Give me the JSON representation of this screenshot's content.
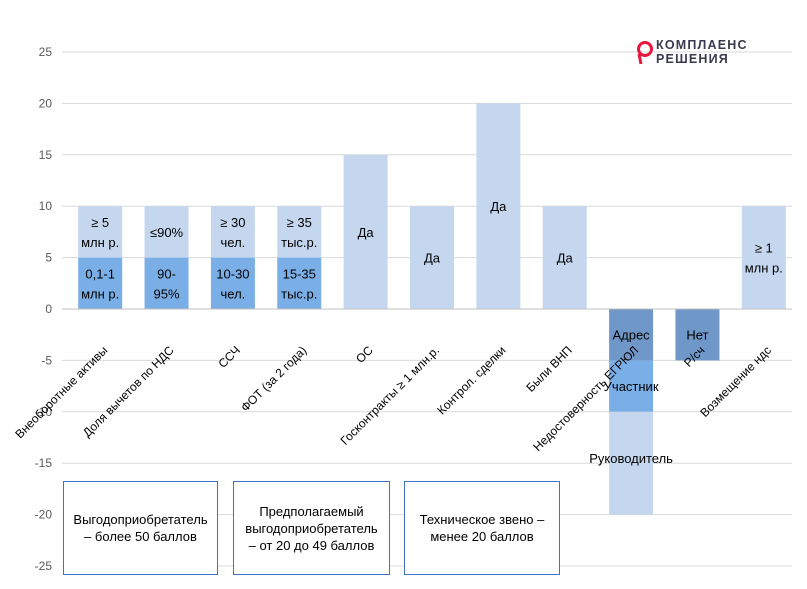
{
  "logo": {
    "line1": "КОМПЛАЕНС",
    "line2": "РЕШЕНИЯ",
    "accent_color": "#e8173c"
  },
  "legend": {
    "box1": "Выгодоприобретатель – более 50 баллов",
    "box2": "Предполагаемый выгодоприобретатель – от 20 до 49 баллов",
    "box3": "Техническое звено – менее 20 баллов"
  },
  "chart_data": {
    "type": "bar",
    "stacked": true,
    "ylim": [
      -25,
      25
    ],
    "yticks": [
      25,
      20,
      15,
      10,
      5,
      0,
      -5,
      -10,
      -15,
      -20,
      -25
    ],
    "grid": true,
    "categories": [
      "Внеоборотные активы",
      "Доля вычетов по НДС",
      "ССЧ",
      "ФОТ (за 2 года)",
      "ОС",
      "Госконтракты ≥ 1 млн.р.",
      "Контрол. сделки",
      "Были ВНП",
      "Недостоверность ЕГРЮЛ",
      "Р/сч",
      "Возмещение ндс"
    ],
    "colors": {
      "light": "#c5d7ee",
      "medium": "#7aaee6",
      "dark": "#6f98c8"
    },
    "series": [
      {
        "name": "segment-1",
        "values": [
          5,
          5,
          5,
          5,
          15,
          10,
          20,
          10,
          -5,
          -5,
          10
        ],
        "colors": [
          "medium",
          "medium",
          "medium",
          "medium",
          "light",
          "light",
          "light",
          "light",
          "dark",
          "dark",
          "light"
        ],
        "labels": [
          [
            "0,1-1",
            "млн р."
          ],
          [
            "90-",
            "95%"
          ],
          [
            "10-30",
            "чел."
          ],
          [
            "15-35",
            "тыс.р."
          ],
          [
            "Да"
          ],
          [
            "Да"
          ],
          [
            "Да"
          ],
          [
            "Да"
          ],
          [
            "Адрес"
          ],
          [
            "Нет"
          ],
          [
            "≥ 1",
            "млн р."
          ]
        ]
      },
      {
        "name": "segment-2",
        "values": [
          5,
          5,
          5,
          5,
          0,
          0,
          0,
          0,
          -5,
          0,
          0
        ],
        "colors": [
          "light",
          "light",
          "light",
          "light",
          "light",
          "light",
          "light",
          "light",
          "medium",
          "light",
          "light"
        ],
        "labels": [
          [
            "≥ 5",
            "млн р."
          ],
          [
            "≤90%"
          ],
          [
            "≥ 30",
            "чел."
          ],
          [
            "≥ 35",
            "тыс.р."
          ],
          [],
          [],
          [],
          [],
          [
            "Участник"
          ],
          [],
          []
        ]
      },
      {
        "name": "segment-3",
        "values": [
          0,
          0,
          0,
          0,
          0,
          0,
          0,
          0,
          -10,
          0,
          0
        ],
        "colors": [
          "light",
          "light",
          "light",
          "light",
          "light",
          "light",
          "light",
          "light",
          "light",
          "light",
          "light"
        ],
        "labels": [
          [],
          [],
          [],
          [],
          [],
          [],
          [],
          [],
          [
            "Руководитель"
          ],
          [],
          []
        ]
      }
    ]
  }
}
